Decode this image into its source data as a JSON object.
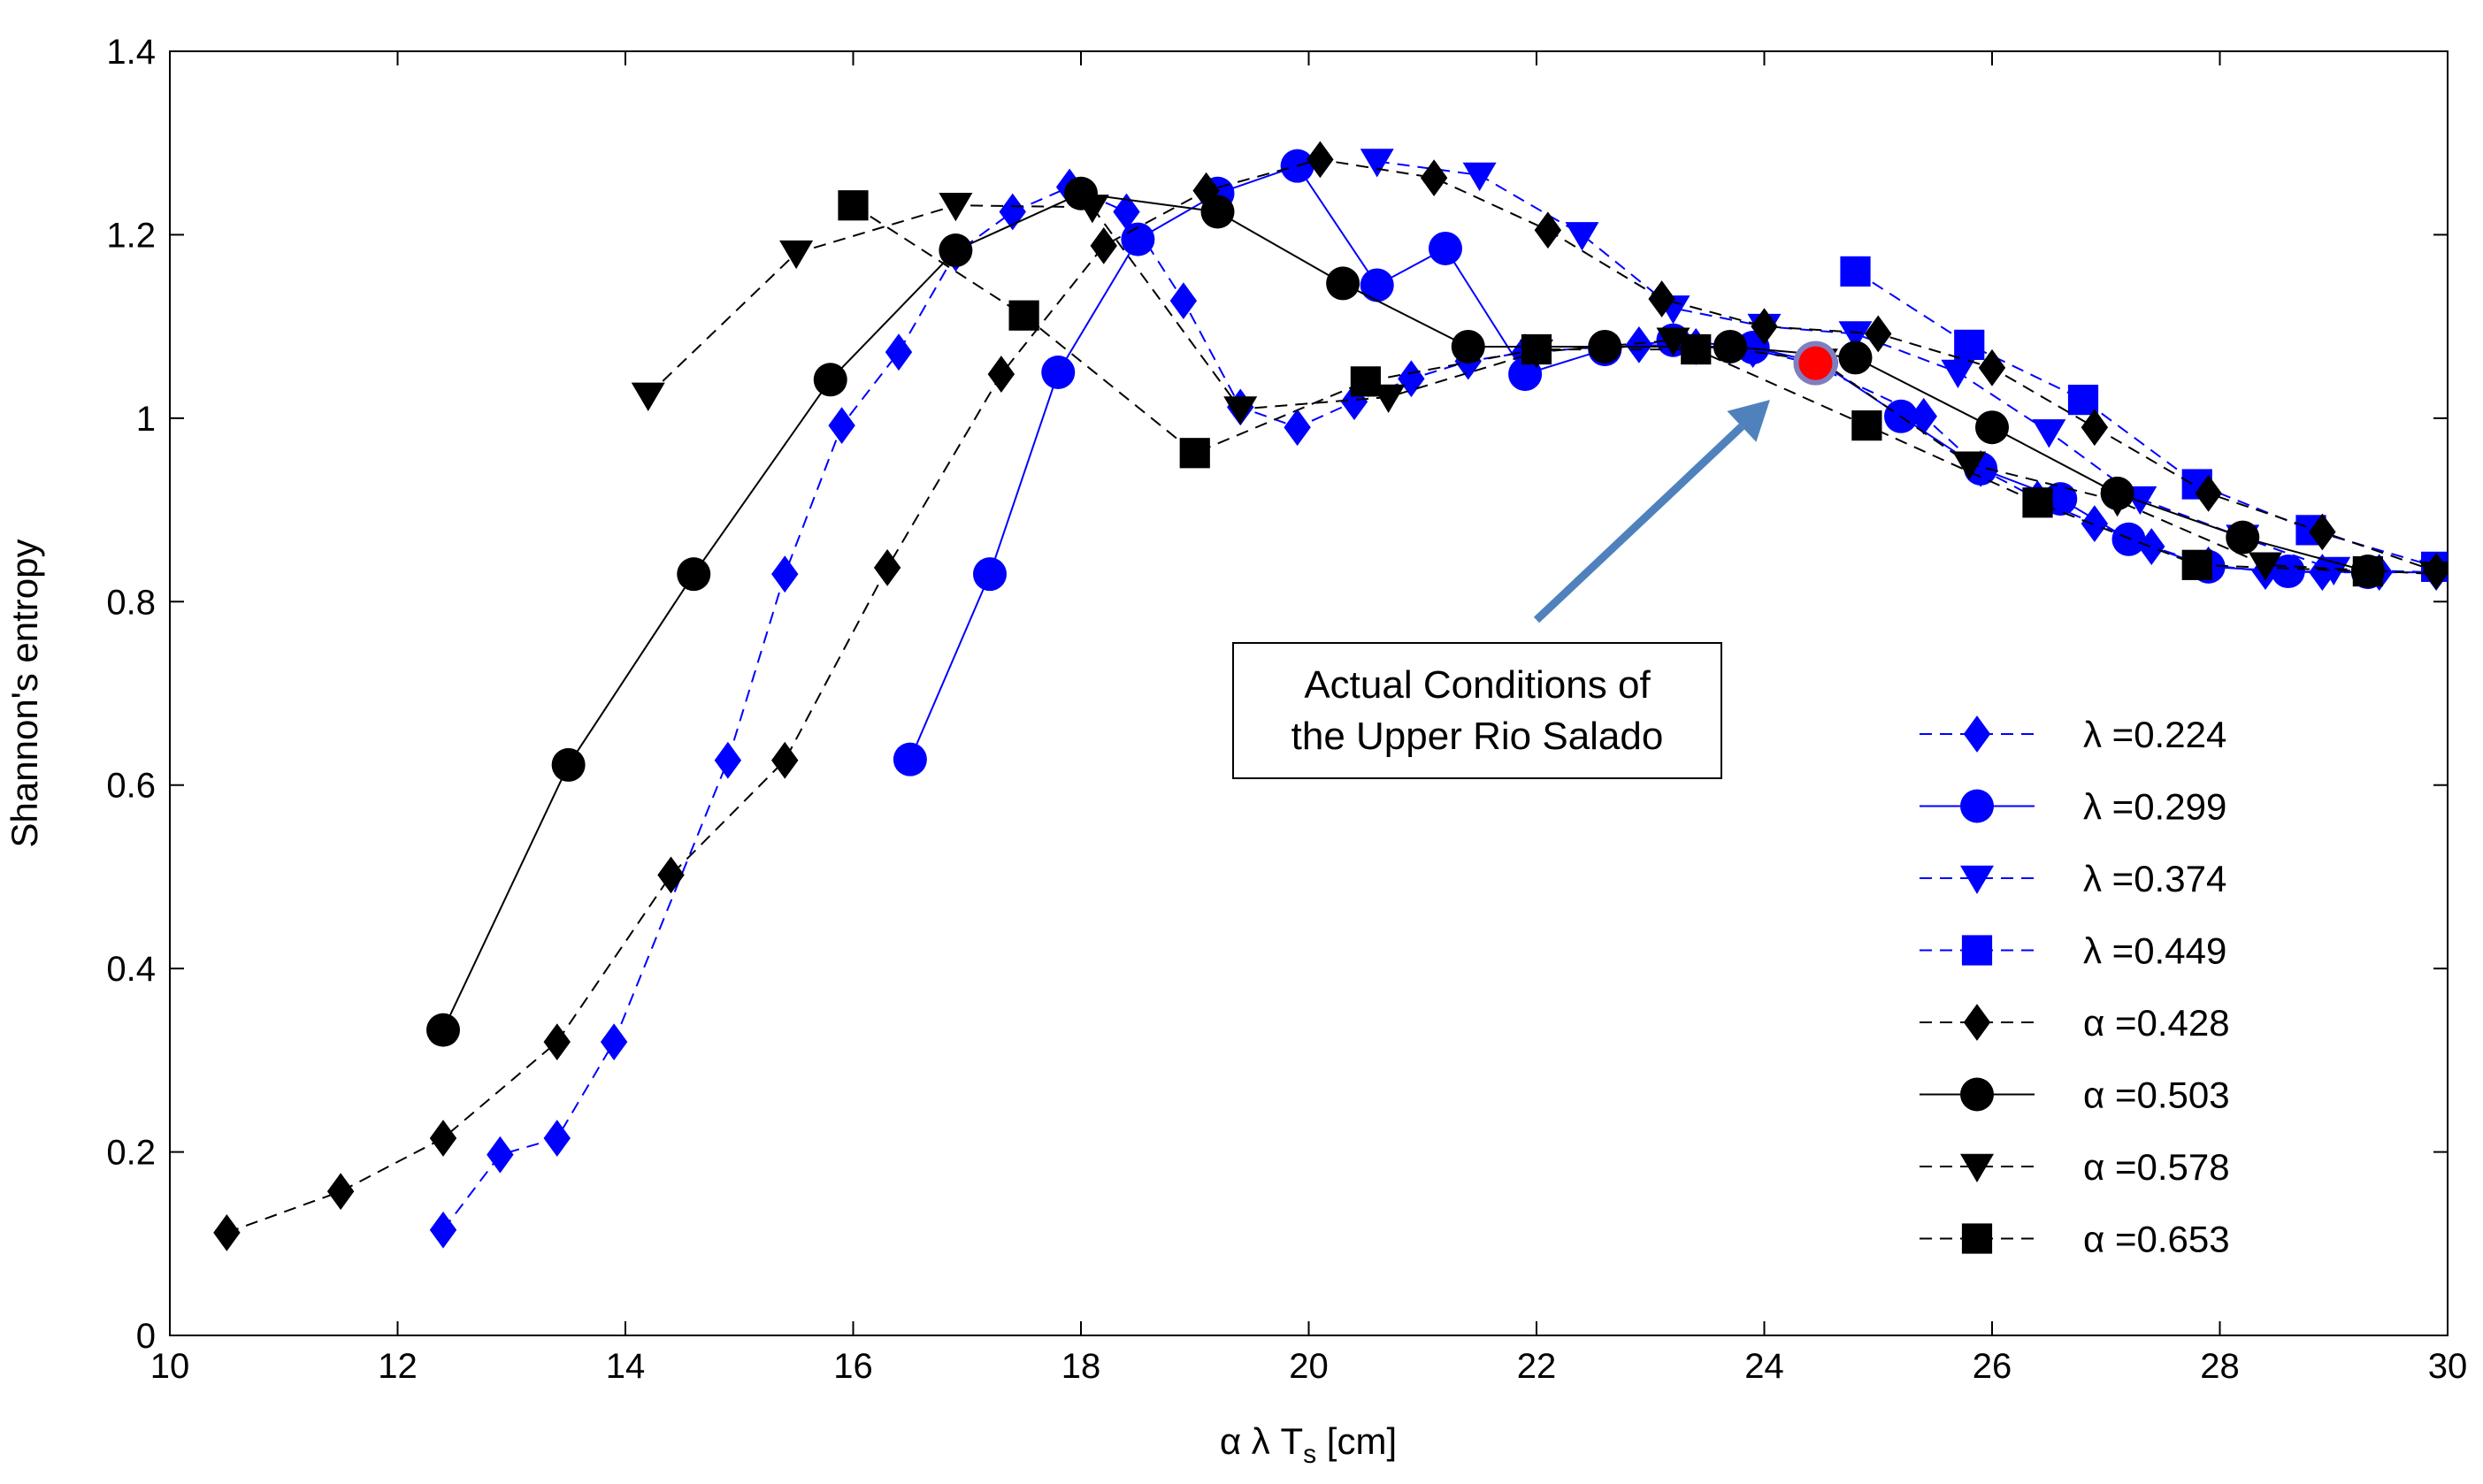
{
  "chart_data": {
    "type": "scatter",
    "xlabel": "α λ T",
    "xlabel_sub": "s",
    "xlabel_unit": " [cm]",
    "ylabel": "Shannon's entropy",
    "xlim": [
      10,
      30
    ],
    "ylim": [
      0,
      1.4
    ],
    "xticks": [
      10,
      12,
      14,
      16,
      18,
      20,
      22,
      24,
      26,
      28,
      30
    ],
    "yticks": [
      0,
      0.2,
      0.4,
      0.6,
      0.8,
      1,
      1.2,
      1.4
    ],
    "xtick_labels": [
      "10",
      "12",
      "14",
      "16",
      "18",
      "20",
      "22",
      "24",
      "26",
      "28",
      "30"
    ],
    "ytick_labels": [
      "0",
      "0.2",
      "0.4",
      "0.6",
      "0.8",
      "1",
      "1.2",
      "1.4"
    ],
    "grid": false,
    "legend_position": "lower-right",
    "series": [
      {
        "name": "λ =0.224",
        "color": "#0000ff",
        "marker": "diamond",
        "line": "dashed",
        "points": [
          [
            12.4,
            0.115
          ],
          [
            12.9,
            0.197
          ],
          [
            13.4,
            0.215
          ],
          [
            13.9,
            0.32
          ],
          [
            14.9,
            0.627
          ],
          [
            15.4,
            0.83
          ],
          [
            15.9,
            0.992
          ],
          [
            16.4,
            1.072
          ],
          [
            16.9,
            1.18
          ],
          [
            17.4,
            1.225
          ],
          [
            17.9,
            1.252
          ],
          [
            18.4,
            1.225
          ],
          [
            18.9,
            1.128
          ],
          [
            19.4,
            1.012
          ],
          [
            19.9,
            0.99
          ],
          [
            20.4,
            1.018
          ],
          [
            20.9,
            1.043
          ],
          [
            21.4,
            1.062
          ],
          [
            21.9,
            1.072
          ],
          [
            22.9,
            1.08
          ],
          [
            23.4,
            1.078
          ],
          [
            23.9,
            1.075
          ],
          [
            24.4,
            1.06
          ],
          [
            25.4,
            1.002
          ],
          [
            25.9,
            0.945
          ],
          [
            26.4,
            0.912
          ],
          [
            26.9,
            0.885
          ],
          [
            27.4,
            0.86
          ],
          [
            27.9,
            0.84
          ],
          [
            28.4,
            0.833
          ],
          [
            28.9,
            0.832
          ],
          [
            29.4,
            0.832
          ],
          [
            29.9,
            0.832
          ]
        ]
      },
      {
        "name": "λ =0.299",
        "color": "#0000ff",
        "marker": "circle",
        "line": "solid",
        "points": [
          [
            16.5,
            0.628
          ],
          [
            17.2,
            0.83
          ],
          [
            17.8,
            1.05
          ],
          [
            18.5,
            1.195
          ],
          [
            19.2,
            1.245
          ],
          [
            19.9,
            1.275
          ],
          [
            20.6,
            1.145
          ],
          [
            21.2,
            1.185
          ],
          [
            21.9,
            1.048
          ],
          [
            22.6,
            1.075
          ],
          [
            23.2,
            1.085
          ],
          [
            23.9,
            1.077
          ],
          [
            24.5,
            1.06
          ],
          [
            25.2,
            1.002
          ],
          [
            25.9,
            0.945
          ],
          [
            26.6,
            0.912
          ],
          [
            27.2,
            0.868
          ],
          [
            27.9,
            0.838
          ],
          [
            28.6,
            0.833
          ],
          [
            29.3,
            0.832
          ]
        ]
      },
      {
        "name": "λ =0.374",
        "color": "#0000ff",
        "marker": "triangle-down",
        "line": "dashed",
        "points": [
          [
            20.6,
            1.28
          ],
          [
            21.5,
            1.265
          ],
          [
            22.4,
            1.2
          ],
          [
            23.2,
            1.12
          ],
          [
            24.0,
            1.1
          ],
          [
            24.8,
            1.092
          ],
          [
            25.7,
            1.05
          ],
          [
            26.5,
            0.985
          ],
          [
            27.3,
            0.912
          ],
          [
            28.2,
            0.87
          ],
          [
            29.0,
            0.835
          ],
          [
            29.9,
            0.832
          ]
        ]
      },
      {
        "name": "λ =0.449",
        "color": "#0000ff",
        "marker": "square",
        "line": "dashed",
        "points": [
          [
            24.8,
            1.16
          ],
          [
            25.8,
            1.08
          ],
          [
            26.8,
            1.02
          ],
          [
            27.8,
            0.928
          ],
          [
            28.8,
            0.878
          ],
          [
            29.9,
            0.838
          ]
        ]
      },
      {
        "name": "α =0.428",
        "color": "#000000",
        "marker": "diamond",
        "line": "dashed",
        "points": [
          [
            10.5,
            0.112
          ],
          [
            11.5,
            0.157
          ],
          [
            12.4,
            0.215
          ],
          [
            13.4,
            0.32
          ],
          [
            14.4,
            0.502
          ],
          [
            15.4,
            0.627
          ],
          [
            16.3,
            0.837
          ],
          [
            17.3,
            1.048
          ],
          [
            18.2,
            1.188
          ],
          [
            19.1,
            1.248
          ],
          [
            20.1,
            1.282
          ],
          [
            21.1,
            1.262
          ],
          [
            22.1,
            1.205
          ],
          [
            23.1,
            1.13
          ],
          [
            24.0,
            1.1
          ],
          [
            25.0,
            1.092
          ],
          [
            26.0,
            1.055
          ],
          [
            26.9,
            0.99
          ],
          [
            27.9,
            0.918
          ],
          [
            28.9,
            0.876
          ],
          [
            29.9,
            0.833
          ]
        ]
      },
      {
        "name": "α =0.503",
        "color": "#000000",
        "marker": "circle",
        "line": "solid",
        "points": [
          [
            12.4,
            0.333
          ],
          [
            13.5,
            0.622
          ],
          [
            14.6,
            0.83
          ],
          [
            15.8,
            1.042
          ],
          [
            16.9,
            1.183
          ],
          [
            18.0,
            1.245
          ],
          [
            19.2,
            1.225
          ],
          [
            20.3,
            1.147
          ],
          [
            21.4,
            1.078
          ],
          [
            22.6,
            1.078
          ],
          [
            23.7,
            1.078
          ],
          [
            24.8,
            1.066
          ],
          [
            26.0,
            0.99
          ],
          [
            27.1,
            0.918
          ],
          [
            28.2,
            0.87
          ],
          [
            29.3,
            0.833
          ]
        ]
      },
      {
        "name": "α =0.578",
        "color": "#000000",
        "marker": "triangle-down",
        "line": "dashed",
        "points": [
          [
            14.2,
            1.025
          ],
          [
            15.5,
            1.18
          ],
          [
            16.9,
            1.232
          ],
          [
            18.1,
            1.23
          ],
          [
            19.4,
            1.01
          ],
          [
            20.7,
            1.023
          ],
          [
            22.0,
            1.072
          ],
          [
            23.2,
            1.085
          ],
          [
            24.5,
            1.062
          ],
          [
            25.8,
            0.95
          ],
          [
            27.1,
            0.91
          ],
          [
            28.4,
            0.84
          ],
          [
            29.9,
            0.83
          ]
        ]
      },
      {
        "name": "α =0.653",
        "color": "#000000",
        "marker": "square",
        "line": "dashed",
        "points": [
          [
            16.0,
            1.232
          ],
          [
            17.5,
            1.112
          ],
          [
            19.0,
            0.962
          ],
          [
            20.5,
            1.04
          ],
          [
            22.0,
            1.075
          ],
          [
            23.4,
            1.075
          ],
          [
            24.9,
            0.992
          ],
          [
            26.4,
            0.908
          ],
          [
            27.8,
            0.84
          ],
          [
            29.3,
            0.833
          ]
        ]
      }
    ],
    "highlight_point": {
      "x": 24.45,
      "y": 1.06,
      "color": "#ff0000"
    },
    "annotation": {
      "lines": [
        "Actual Conditions of",
        "the Upper Rio Salado"
      ],
      "arrow_color": "#4f81bd",
      "arrow_from": [
        22.0,
        0.78
      ],
      "arrow_to": [
        24.05,
        1.02
      ]
    }
  }
}
